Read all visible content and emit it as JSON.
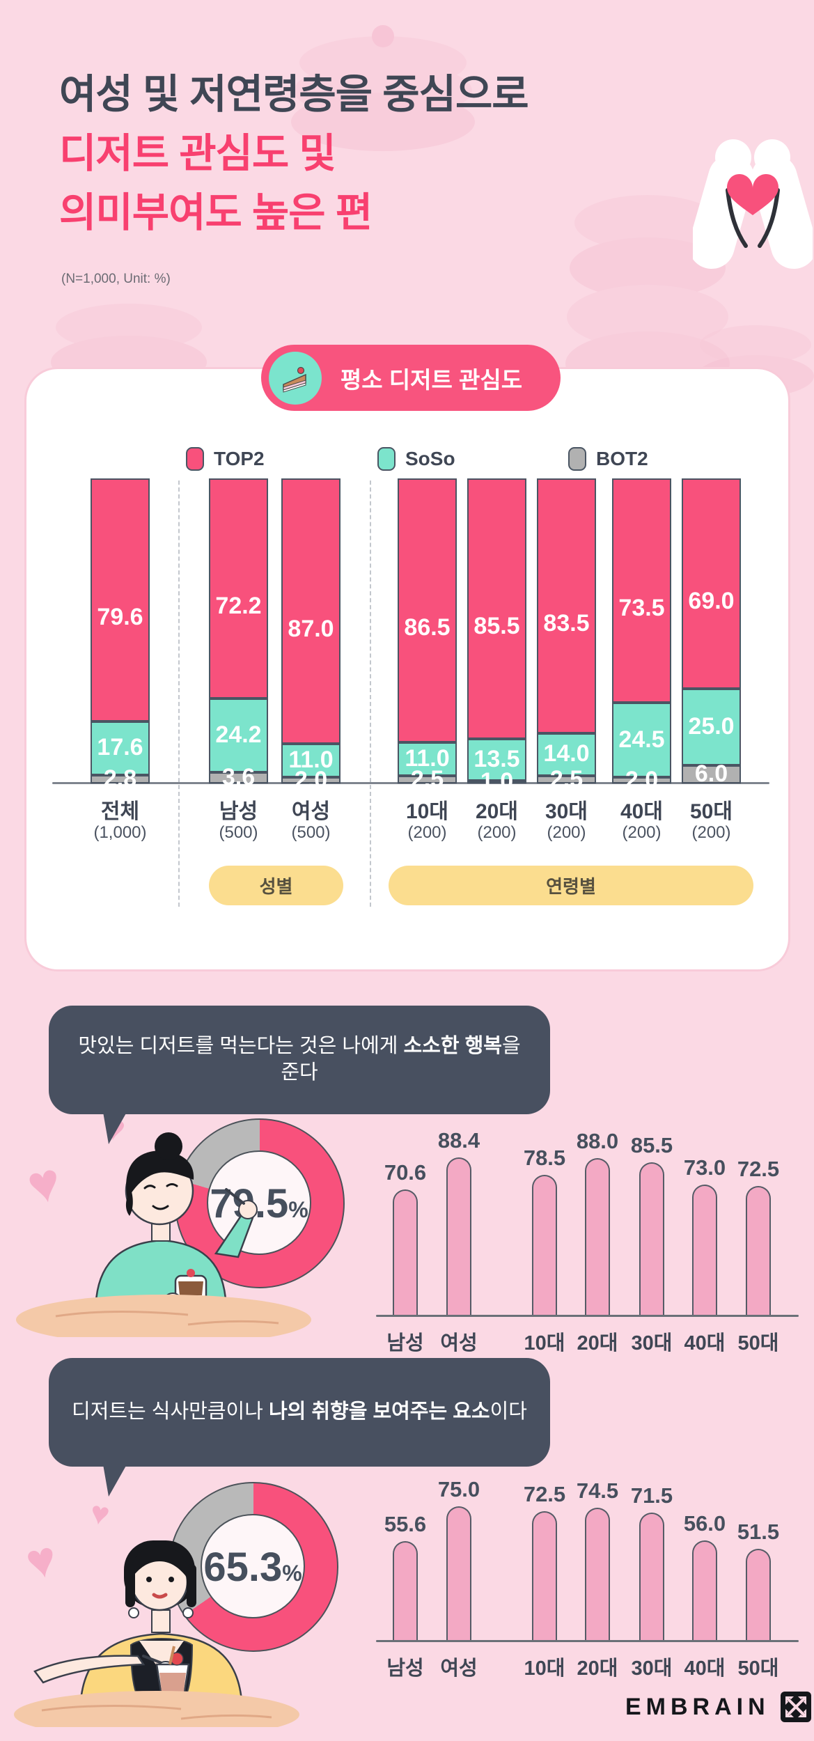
{
  "header": {
    "title_line1": "여성 및 저연령층을 중심으로",
    "title_line2": "디저트 관심도 및",
    "title_line3": "의미부여도 높은 편",
    "note": "(N=1,000, Unit: %)"
  },
  "interest_card": {
    "badge_label": "평소 디저트 관심도",
    "badge_icon": "cake-icon",
    "legend": [
      {
        "label": "TOP2",
        "color": "#F8517C"
      },
      {
        "label": "SoSo",
        "color": "#7CE4CC"
      },
      {
        "label": "BOT2",
        "color": "#B1B1B1"
      }
    ],
    "group_badges": {
      "gender": "성별",
      "age": "연령별"
    }
  },
  "statement_sections": [
    {
      "statement_prefix": "맛있는 디저트를  먹는다는 것은 나에게 ",
      "statement_bold": "소소한 행복",
      "statement_suffix": "을 준다",
      "donut": {
        "value": "79.5",
        "unit": "%",
        "percent": 79.5
      }
    },
    {
      "statement_prefix": "디저트는 식사만큼이나 ",
      "statement_bold": "나의 취향을 보여주는 요소",
      "statement_suffix": "이다",
      "donut": {
        "value": "65.3",
        "unit": "%",
        "percent": 65.3
      }
    }
  ],
  "footer": {
    "logo_text": "EMBRAIN",
    "logo_icon": "embrain-mark-icon"
  },
  "chart_data": [
    {
      "type": "bar",
      "variant": "stacked",
      "title": "평소 디저트 관심도",
      "unit": "%",
      "ylim": [
        0,
        100
      ],
      "legend_position": "top",
      "categories": [
        "전체",
        "남성",
        "여성",
        "10대",
        "20대",
        "30대",
        "40대",
        "50대"
      ],
      "sample_sizes": [
        "(1,000)",
        "(500)",
        "(500)",
        "(200)",
        "(200)",
        "(200)",
        "(200)",
        "(200)"
      ],
      "series": [
        {
          "name": "TOP2",
          "color": "#F8517C",
          "values": [
            79.6,
            72.2,
            87.0,
            86.5,
            85.5,
            83.5,
            73.5,
            69.0
          ]
        },
        {
          "name": "SoSo",
          "color": "#7CE4CC",
          "values": [
            17.6,
            24.2,
            11.0,
            11.0,
            13.5,
            14.0,
            24.5,
            25.0
          ]
        },
        {
          "name": "BOT2",
          "color": "#B1B1B1",
          "values": [
            2.8,
            3.6,
            2.0,
            2.5,
            1.0,
            2.5,
            2.0,
            6.0
          ]
        }
      ],
      "group_labels": [
        {
          "label": "성별",
          "span": [
            "남성",
            "여성"
          ]
        },
        {
          "label": "연령별",
          "span": [
            "10대",
            "50대"
          ]
        }
      ]
    },
    {
      "type": "bar",
      "title": "맛있는 디저트를 먹는다는 것은 나에게 소소한 행복을 준다 (동의율)",
      "unit": "%",
      "overall": 79.5,
      "categories": [
        "남성",
        "여성",
        "10대",
        "20대",
        "30대",
        "40대",
        "50대"
      ],
      "values": [
        70.6,
        88.4,
        78.5,
        88.0,
        85.5,
        73.0,
        72.5
      ]
    },
    {
      "type": "bar",
      "title": "디저트는 식사만큼이나 나의 취향을 보여주는 요소이다 (동의율)",
      "unit": "%",
      "overall": 65.3,
      "categories": [
        "남성",
        "여성",
        "10대",
        "20대",
        "30대",
        "40대",
        "50대"
      ],
      "values": [
        55.6,
        75.0,
        72.5,
        74.5,
        71.5,
        56.0,
        51.5
      ]
    }
  ]
}
